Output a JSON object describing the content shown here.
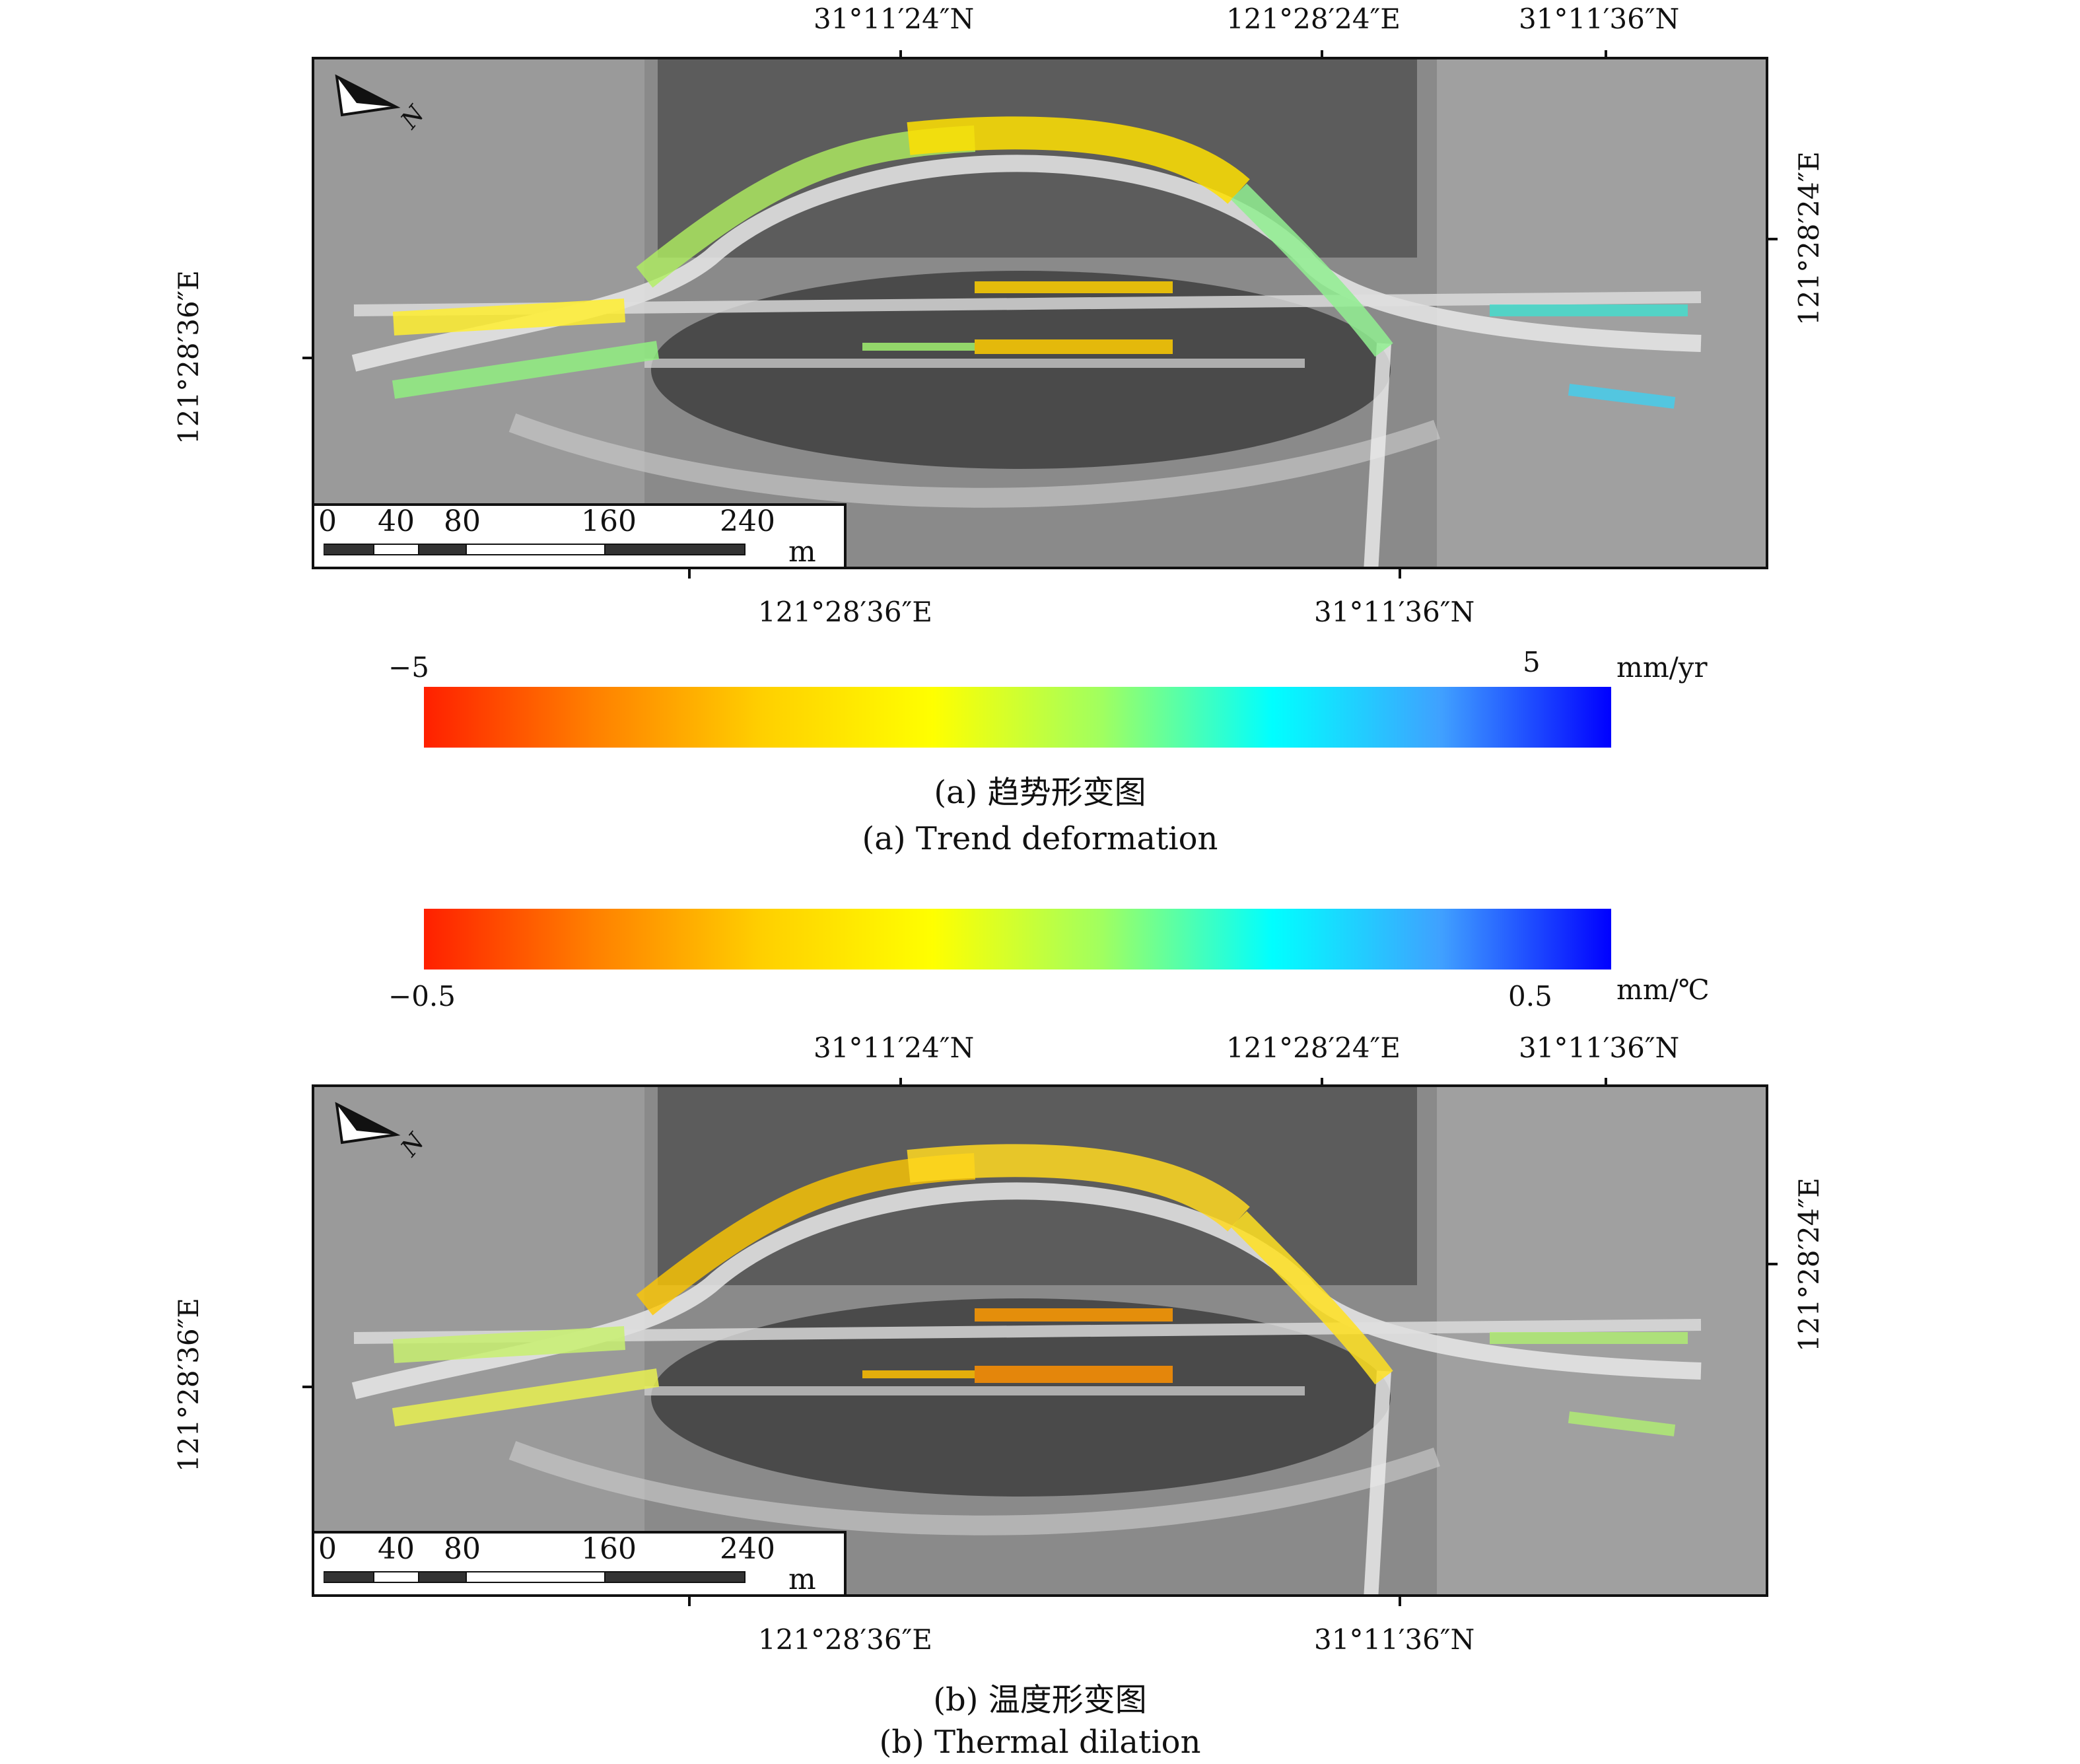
{
  "panel_a": {
    "top_labels": [
      "31°11′24″N",
      "121°28′24″E",
      "31°11′36″N"
    ],
    "bottom_labels": [
      "121°28′36″E",
      "31°11′36″N"
    ],
    "left_label": "121°28′36″E",
    "right_label": "121°28′24″E",
    "north_label": "N",
    "scale": {
      "ticks": [
        "0",
        "40",
        "80",
        "160",
        "240"
      ],
      "unit": "m"
    },
    "colorbar": {
      "min_label": "−5",
      "max_label": "5",
      "unit": "mm/yr",
      "colors": [
        "#ff2000",
        "#ff8000",
        "#ffd000",
        "#ffff00",
        "#a0ff60",
        "#00ffff",
        "#40a0ff",
        "#0000ff"
      ]
    },
    "caption_cn": "(a) 趋势形变图",
    "caption_en": "(a) Trend deformation"
  },
  "panel_b": {
    "top_labels": [
      "31°11′24″N",
      "121°28′24″E",
      "31°11′36″N"
    ],
    "bottom_labels": [
      "121°28′36″E",
      "31°11′36″N"
    ],
    "left_label": "121°28′36″E",
    "right_label": "121°28′24″E",
    "north_label": "N",
    "scale": {
      "ticks": [
        "0",
        "40",
        "80",
        "160",
        "240"
      ],
      "unit": "m"
    },
    "colorbar": {
      "min_label": "−0.5",
      "max_label": "0.5",
      "unit": "mm/℃",
      "colors": [
        "#ff2000",
        "#ff8000",
        "#ffd000",
        "#ffff00",
        "#a0ff60",
        "#00ffff",
        "#40a0ff",
        "#0000ff"
      ]
    },
    "caption_cn": "(b) 温度形变图",
    "caption_en": "(b) Thermal dilation"
  }
}
